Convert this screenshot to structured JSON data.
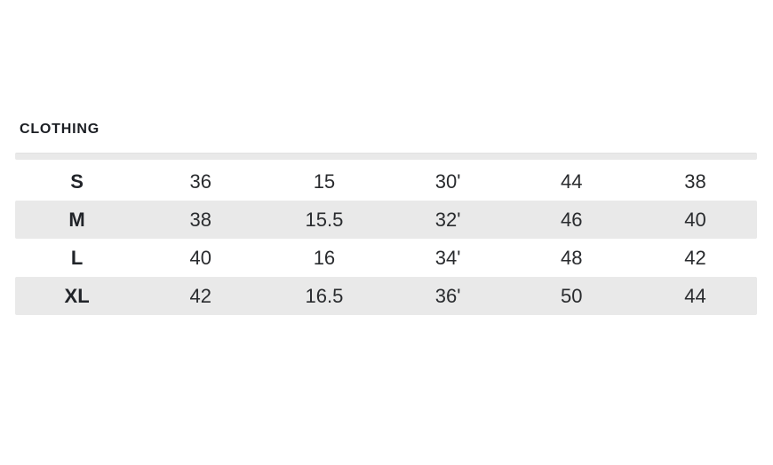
{
  "page": {
    "background_color": "#ffffff",
    "shaded_row_color": "#e9e9e9",
    "text_color": "#292b2e"
  },
  "section": {
    "title": "CLOTHING"
  },
  "table": {
    "rows": [
      {
        "size": "S",
        "values": [
          "36",
          "15",
          "30'",
          "44",
          "38"
        ]
      },
      {
        "size": "M",
        "values": [
          "38",
          "15.5",
          "32'",
          "46",
          "40"
        ]
      },
      {
        "size": "L",
        "values": [
          "40",
          "16",
          "34'",
          "48",
          "42"
        ]
      },
      {
        "size": "XL",
        "values": [
          "42",
          "16.5",
          "36'",
          "50",
          "44"
        ]
      }
    ]
  }
}
